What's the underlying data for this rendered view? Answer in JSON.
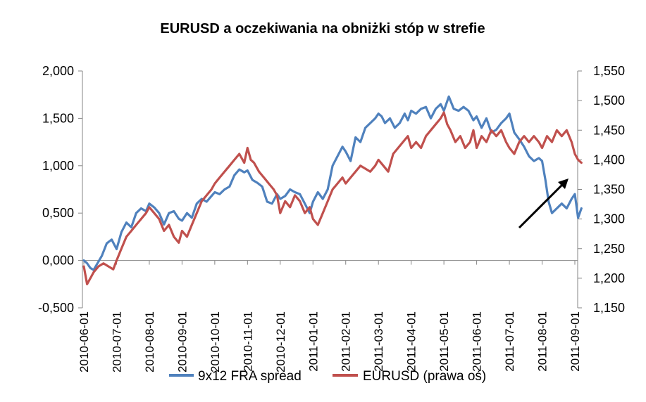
{
  "chart_data": {
    "type": "line",
    "title": "EURUSD a oczekiwania na obniżki stóp w strefie",
    "x_tick_labels": [
      "2010-06-01",
      "2010-07-01",
      "2010-08-01",
      "2010-09-01",
      "2010-10-01",
      "2010-11-01",
      "2010-12-01",
      "2011-01-01",
      "2011-02-01",
      "2011-03-01",
      "2011-04-01",
      "2011-05-01",
      "2011-06-01",
      "2011-07-01",
      "2011-08-01",
      "2011-09-01"
    ],
    "y_left": {
      "min": -0.5,
      "max": 2.0,
      "ticks": [
        -0.5,
        0.0,
        0.5,
        1.0,
        1.5,
        2.0
      ],
      "tick_labels": [
        "-0,500",
        "0,000",
        "0,500",
        "1,000",
        "1,500",
        "2,000"
      ]
    },
    "y_right": {
      "min": 1.15,
      "max": 1.55,
      "ticks": [
        1.15,
        1.2,
        1.25,
        1.3,
        1.35,
        1.4,
        1.45,
        1.5,
        1.55
      ],
      "tick_labels": [
        "1,150",
        "1,200",
        "1,250",
        "1,300",
        "1,350",
        "1,400",
        "1,450",
        "1,500",
        "1,550"
      ],
      "label": "prawa oś"
    },
    "series": [
      {
        "name": "9x12 FRA spread",
        "axis": "left",
        "color": "#4F81BD",
        "x_months": [
          0,
          0.1,
          0.2,
          0.3,
          0.4,
          0.55,
          0.7,
          0.85,
          1.0,
          1.15,
          1.3,
          1.45,
          1.6,
          1.75,
          1.9,
          2.0,
          2.15,
          2.3,
          2.45,
          2.6,
          2.75,
          2.9,
          3.0,
          3.15,
          3.3,
          3.45,
          3.6,
          3.75,
          3.9,
          4.0,
          4.15,
          4.3,
          4.45,
          4.6,
          4.75,
          4.9,
          5.0,
          5.15,
          5.3,
          5.45,
          5.6,
          5.75,
          5.9,
          6.0,
          6.15,
          6.3,
          6.45,
          6.6,
          6.75,
          6.9,
          7.0,
          7.15,
          7.3,
          7.45,
          7.6,
          7.75,
          7.9,
          8.0,
          8.15,
          8.3,
          8.45,
          8.6,
          8.75,
          8.9,
          9.0,
          9.1,
          9.2,
          9.35,
          9.5,
          9.65,
          9.8,
          9.9,
          10.0,
          10.15,
          10.3,
          10.45,
          10.6,
          10.75,
          10.9,
          11.0,
          11.15,
          11.3,
          11.45,
          11.6,
          11.75,
          11.9,
          12.0,
          12.15,
          12.3,
          12.45,
          12.6,
          12.75,
          12.9,
          13.0,
          13.15,
          13.3,
          13.45,
          13.6,
          13.75,
          13.9,
          14.0,
          14.1,
          14.2,
          14.3,
          14.45,
          14.6,
          14.75,
          14.9,
          15.0,
          15.1,
          15.2
        ],
        "values": [
          0.0,
          -0.03,
          -0.08,
          -0.1,
          -0.04,
          0.05,
          0.18,
          0.22,
          0.12,
          0.3,
          0.4,
          0.35,
          0.5,
          0.55,
          0.52,
          0.6,
          0.56,
          0.5,
          0.38,
          0.5,
          0.52,
          0.44,
          0.42,
          0.5,
          0.45,
          0.6,
          0.65,
          0.62,
          0.68,
          0.72,
          0.7,
          0.75,
          0.78,
          0.9,
          0.96,
          0.93,
          0.95,
          0.85,
          0.82,
          0.78,
          0.62,
          0.6,
          0.7,
          0.65,
          0.68,
          0.75,
          0.72,
          0.7,
          0.6,
          0.5,
          0.62,
          0.72,
          0.65,
          0.75,
          1.0,
          1.1,
          1.2,
          1.15,
          1.05,
          1.3,
          1.25,
          1.4,
          1.45,
          1.5,
          1.55,
          1.52,
          1.45,
          1.5,
          1.4,
          1.45,
          1.55,
          1.48,
          1.58,
          1.55,
          1.6,
          1.62,
          1.5,
          1.6,
          1.65,
          1.58,
          1.73,
          1.6,
          1.58,
          1.62,
          1.58,
          1.48,
          1.52,
          1.4,
          1.5,
          1.35,
          1.38,
          1.45,
          1.5,
          1.55,
          1.35,
          1.28,
          1.2,
          1.1,
          1.05,
          1.08,
          1.05,
          0.85,
          0.62,
          0.5,
          0.55,
          0.6,
          0.55,
          0.65,
          0.7,
          0.45,
          0.55
        ]
      },
      {
        "name": "EURUSD (prawa oś)",
        "axis": "right",
        "color": "#C0504D",
        "x_months": [
          0,
          0.1,
          0.2,
          0.3,
          0.45,
          0.6,
          0.75,
          0.9,
          1.0,
          1.15,
          1.3,
          1.45,
          1.6,
          1.75,
          1.9,
          2.0,
          2.15,
          2.3,
          2.45,
          2.6,
          2.75,
          2.9,
          3.0,
          3.15,
          3.3,
          3.45,
          3.6,
          3.75,
          3.9,
          4.0,
          4.15,
          4.3,
          4.45,
          4.6,
          4.75,
          4.9,
          5.0,
          5.1,
          5.2,
          5.35,
          5.5,
          5.65,
          5.8,
          5.9,
          6.0,
          6.15,
          6.3,
          6.45,
          6.6,
          6.75,
          6.9,
          7.0,
          7.15,
          7.3,
          7.45,
          7.6,
          7.75,
          7.9,
          8.0,
          8.15,
          8.3,
          8.45,
          8.6,
          8.75,
          8.9,
          9.0,
          9.15,
          9.3,
          9.45,
          9.6,
          9.75,
          9.9,
          10.0,
          10.15,
          10.3,
          10.45,
          10.6,
          10.75,
          10.9,
          11.0,
          11.1,
          11.2,
          11.35,
          11.5,
          11.65,
          11.8,
          11.9,
          12.0,
          12.15,
          12.3,
          12.45,
          12.6,
          12.75,
          12.9,
          13.0,
          13.15,
          13.3,
          13.45,
          13.6,
          13.75,
          13.9,
          14.0,
          14.15,
          14.3,
          14.45,
          14.6,
          14.75,
          14.9,
          15.0,
          15.1,
          15.2
        ],
        "values": [
          1.22,
          1.19,
          1.2,
          1.21,
          1.22,
          1.225,
          1.22,
          1.215,
          1.23,
          1.25,
          1.27,
          1.28,
          1.29,
          1.3,
          1.31,
          1.32,
          1.31,
          1.3,
          1.28,
          1.29,
          1.27,
          1.26,
          1.28,
          1.27,
          1.29,
          1.31,
          1.33,
          1.34,
          1.35,
          1.36,
          1.37,
          1.38,
          1.39,
          1.4,
          1.41,
          1.395,
          1.42,
          1.4,
          1.395,
          1.38,
          1.37,
          1.36,
          1.35,
          1.34,
          1.31,
          1.33,
          1.32,
          1.34,
          1.33,
          1.31,
          1.32,
          1.3,
          1.29,
          1.31,
          1.33,
          1.35,
          1.36,
          1.37,
          1.36,
          1.37,
          1.38,
          1.39,
          1.385,
          1.38,
          1.39,
          1.4,
          1.39,
          1.38,
          1.41,
          1.42,
          1.43,
          1.44,
          1.42,
          1.43,
          1.42,
          1.44,
          1.45,
          1.46,
          1.47,
          1.48,
          1.46,
          1.45,
          1.43,
          1.44,
          1.42,
          1.43,
          1.45,
          1.42,
          1.44,
          1.43,
          1.45,
          1.44,
          1.45,
          1.43,
          1.42,
          1.41,
          1.43,
          1.44,
          1.43,
          1.44,
          1.43,
          1.42,
          1.44,
          1.43,
          1.45,
          1.44,
          1.45,
          1.43,
          1.41,
          1.4,
          1.395
        ],
        "legend": "EURUSD (prawa oś)"
      }
    ],
    "annotation": {
      "type": "arrow",
      "color": "#000000",
      "description": "arrow pointing up-right"
    }
  }
}
